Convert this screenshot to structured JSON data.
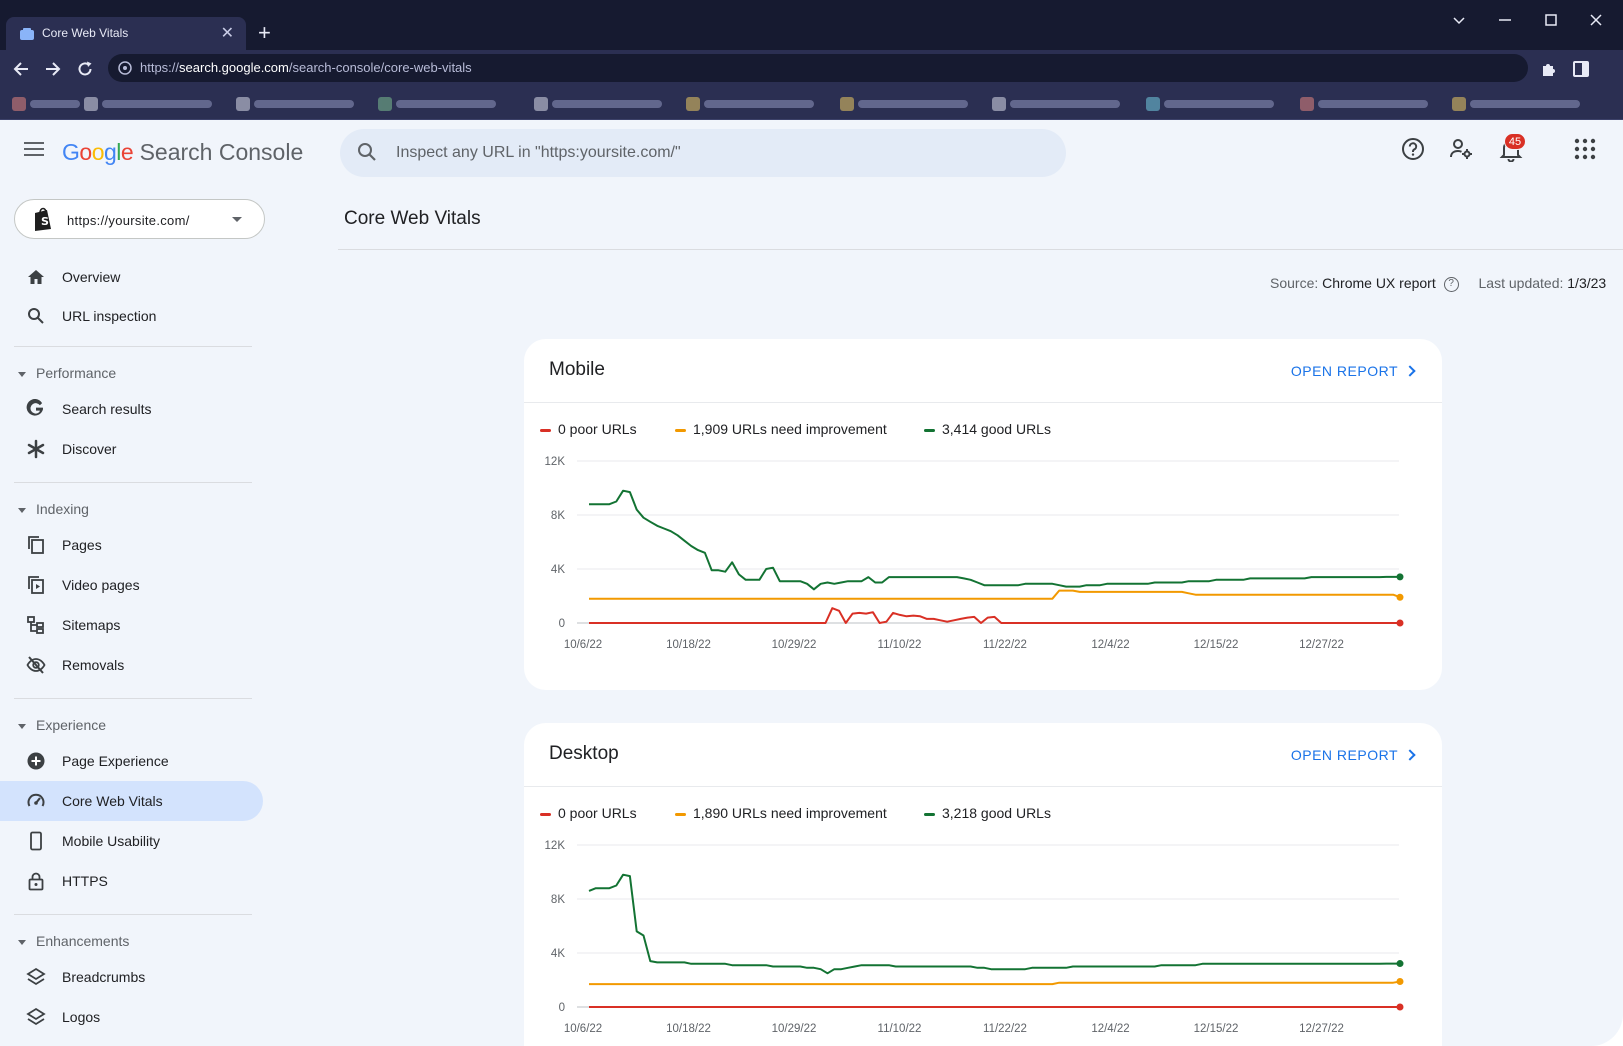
{
  "browser": {
    "tab_title": "Core Web Vitals",
    "tab_close": "✕",
    "new_tab": "+",
    "url_scheme": "https://",
    "url_host": "search.google.com",
    "url_path": "/search-console/core-web-vitals",
    "colors": {
      "frame": "#161a30",
      "toolbar": "#2b2f52"
    }
  },
  "header": {
    "logo_google": "Google",
    "logo_product": "Search Console",
    "search_placeholder": "Inspect any URL in \"https:yoursite.com/\"",
    "notification_count": "45"
  },
  "sidebar": {
    "property": "https://yoursite.com/",
    "top_items": [
      "Overview",
      "URL inspection"
    ],
    "sections": [
      {
        "title": "Performance",
        "items": [
          "Search results",
          "Discover"
        ]
      },
      {
        "title": "Indexing",
        "items": [
          "Pages",
          "Video pages",
          "Sitemaps",
          "Removals"
        ]
      },
      {
        "title": "Experience",
        "items": [
          "Page Experience",
          "Core Web Vitals",
          "Mobile Usability",
          "HTTPS"
        ]
      },
      {
        "title": "Enhancements",
        "items": [
          "Breadcrumbs",
          "Logos"
        ]
      }
    ],
    "active_item": "Core Web Vitals"
  },
  "main": {
    "title": "Core Web Vitals",
    "source_label": "Source:",
    "source_value": "Chrome UX report",
    "last_updated_label": "Last updated:",
    "last_updated_value": "1/3/23",
    "open_report": "OPEN REPORT"
  },
  "chart_data": [
    {
      "type": "line",
      "title": "Mobile",
      "x_ticks": [
        "10/6/22",
        "10/18/22",
        "10/29/22",
        "11/10/22",
        "11/22/22",
        "12/4/22",
        "12/15/22",
        "12/27/22"
      ],
      "y_ticks": [
        "12K",
        "8K",
        "4K",
        "0"
      ],
      "ylim": [
        0,
        12000
      ],
      "colors": {
        "poor": "#d93025",
        "needs_improvement": "#f29900",
        "good": "#137333"
      },
      "legend": [
        "0 poor URLs",
        "1,909 URLs need improvement",
        "3,414 good URLs"
      ],
      "series": [
        {
          "name": "0 poor URLs",
          "color": "#d93025",
          "values": [
            0,
            0,
            0,
            0,
            0,
            0,
            0,
            0,
            0,
            0,
            0,
            0,
            0,
            0,
            0,
            0,
            0,
            0,
            0,
            0,
            0,
            0,
            0,
            0,
            0,
            0,
            0,
            0,
            0,
            0,
            0,
            0,
            0,
            0,
            0,
            0,
            1100,
            900,
            0,
            700,
            750,
            700,
            800,
            0,
            100,
            750,
            600,
            500,
            550,
            500,
            300,
            300,
            200,
            100,
            200,
            300,
            400,
            450,
            0,
            400,
            450,
            0,
            0,
            0,
            0,
            0,
            0,
            0,
            0,
            0,
            0,
            0,
            0,
            0,
            0,
            0,
            0,
            0,
            0,
            0,
            0,
            0,
            0,
            0,
            0,
            0,
            0,
            0,
            0,
            0,
            0,
            0,
            0,
            0,
            0,
            0,
            0,
            0,
            0,
            0,
            0,
            0,
            0,
            0,
            0,
            0,
            0,
            0,
            0,
            0,
            0,
            0,
            0,
            0,
            0,
            0,
            0,
            0,
            0,
            0,
            0
          ]
        },
        {
          "name": "1,909 URLs need improvement",
          "color": "#f29900",
          "values": [
            1800,
            1800,
            1800,
            1800,
            1800,
            1800,
            1800,
            1800,
            1800,
            1800,
            1800,
            1800,
            1800,
            1800,
            1800,
            1800,
            1800,
            1800,
            1800,
            1800,
            1800,
            1800,
            1800,
            1800,
            1800,
            1800,
            1800,
            1800,
            1800,
            1800,
            1800,
            1800,
            1800,
            1800,
            1800,
            1800,
            1800,
            1800,
            1800,
            1800,
            1800,
            1800,
            1800,
            1800,
            1800,
            1800,
            1800,
            1800,
            1800,
            1800,
            1800,
            1800,
            1800,
            1800,
            1800,
            1800,
            1800,
            1800,
            1800,
            1800,
            1800,
            1800,
            1800,
            1800,
            1800,
            1800,
            1800,
            1800,
            1800,
            2400,
            2400,
            2400,
            2300,
            2300,
            2300,
            2300,
            2300,
            2300,
            2300,
            2300,
            2300,
            2300,
            2300,
            2300,
            2300,
            2300,
            2300,
            2300,
            2200,
            2100,
            2100,
            2100,
            2100,
            2100,
            2100,
            2100,
            2100,
            2100,
            2100,
            2100,
            2100,
            2100,
            2100,
            2100,
            2100,
            2100,
            2100,
            2100,
            2100,
            2100,
            2100,
            2100,
            2100,
            2100,
            2100,
            2100,
            2100,
            2100,
            2100,
            1909
          ]
        },
        {
          "name": "3,414 good URLs",
          "color": "#137333",
          "values": [
            8800,
            8800,
            8800,
            8800,
            9000,
            9800,
            9700,
            8400,
            7800,
            7500,
            7200,
            7000,
            6800,
            6500,
            6100,
            5700,
            5400,
            5200,
            3900,
            3900,
            3800,
            4500,
            3600,
            3200,
            3200,
            3200,
            4000,
            4100,
            3100,
            3100,
            3100,
            3100,
            2900,
            2500,
            2900,
            3000,
            2900,
            3000,
            3100,
            3100,
            3100,
            3400,
            3000,
            3000,
            3400,
            3400,
            3400,
            3400,
            3400,
            3400,
            3400,
            3400,
            3400,
            3400,
            3400,
            3300,
            3200,
            3000,
            2800,
            2800,
            2800,
            2800,
            2800,
            2800,
            2900,
            2900,
            2900,
            2900,
            2900,
            2800,
            2700,
            2700,
            2700,
            2800,
            2800,
            2800,
            2900,
            2900,
            2900,
            2900,
            2900,
            2900,
            2900,
            3000,
            3000,
            3000,
            3000,
            3000,
            3100,
            3100,
            3100,
            3100,
            3200,
            3200,
            3200,
            3200,
            3200,
            3300,
            3300,
            3300,
            3300,
            3300,
            3300,
            3300,
            3300,
            3300,
            3400,
            3400,
            3400,
            3400,
            3400,
            3400,
            3400,
            3400,
            3400,
            3400,
            3400,
            3414,
            3414,
            3414
          ]
        }
      ]
    },
    {
      "type": "line",
      "title": "Desktop",
      "x_ticks": [
        "10/6/22",
        "10/18/22",
        "10/29/22",
        "11/10/22",
        "11/22/22",
        "12/4/22",
        "12/15/22",
        "12/27/22"
      ],
      "y_ticks": [
        "12K",
        "8K",
        "4K",
        "0"
      ],
      "ylim": [
        0,
        12000
      ],
      "legend": [
        "0 poor URLs",
        "1,890 URLs need improvement",
        "3,218 good URLs"
      ],
      "series": [
        {
          "name": "0 poor URLs",
          "color": "#d93025",
          "values": [
            0,
            0,
            0,
            0,
            0,
            0,
            0,
            0,
            0,
            0,
            0,
            0,
            0,
            0,
            0,
            0,
            0,
            0,
            0,
            0,
            0,
            0,
            0,
            0,
            0,
            0,
            0,
            0,
            0,
            0,
            0,
            0,
            0,
            0,
            0,
            0,
            0,
            0,
            0,
            0,
            0,
            0,
            0,
            0,
            0,
            0,
            0,
            0,
            0,
            0,
            0,
            0,
            0,
            0,
            0,
            0,
            0,
            0,
            0,
            0,
            0,
            0,
            0,
            0,
            0,
            0,
            0,
            0,
            0,
            0,
            0,
            0,
            0,
            0,
            0,
            0,
            0,
            0,
            0,
            0,
            0,
            0,
            0,
            0,
            0,
            0,
            0,
            0,
            0,
            0,
            0,
            0,
            0,
            0,
            0,
            0,
            0,
            0,
            0,
            0,
            0,
            0,
            0,
            0,
            0,
            0,
            0,
            0,
            0,
            0,
            0,
            0,
            0,
            0,
            0,
            0,
            0,
            0,
            0,
            0
          ]
        },
        {
          "name": "1,890 URLs need improvement",
          "color": "#f29900",
          "values": [
            1700,
            1700,
            1700,
            1700,
            1700,
            1700,
            1700,
            1700,
            1700,
            1700,
            1700,
            1700,
            1700,
            1700,
            1700,
            1700,
            1700,
            1700,
            1700,
            1700,
            1700,
            1700,
            1700,
            1700,
            1700,
            1700,
            1700,
            1700,
            1700,
            1700,
            1700,
            1700,
            1700,
            1700,
            1700,
            1700,
            1700,
            1700,
            1700,
            1700,
            1700,
            1700,
            1700,
            1700,
            1700,
            1700,
            1700,
            1700,
            1700,
            1700,
            1700,
            1700,
            1700,
            1700,
            1700,
            1700,
            1700,
            1700,
            1700,
            1700,
            1700,
            1700,
            1700,
            1700,
            1700,
            1700,
            1700,
            1700,
            1700,
            1800,
            1800,
            1800,
            1800,
            1800,
            1800,
            1800,
            1800,
            1800,
            1800,
            1800,
            1800,
            1800,
            1800,
            1800,
            1800,
            1800,
            1800,
            1800,
            1800,
            1800,
            1800,
            1800,
            1800,
            1800,
            1800,
            1800,
            1800,
            1800,
            1800,
            1800,
            1800,
            1800,
            1800,
            1800,
            1800,
            1800,
            1800,
            1800,
            1800,
            1800,
            1800,
            1800,
            1800,
            1800,
            1800,
            1800,
            1800,
            1800,
            1800,
            1890
          ]
        },
        {
          "name": "3,218 good URLs",
          "color": "#137333",
          "values": [
            8600,
            8800,
            8800,
            8800,
            9000,
            9800,
            9700,
            5600,
            5300,
            3400,
            3300,
            3300,
            3300,
            3300,
            3300,
            3200,
            3200,
            3200,
            3200,
            3200,
            3200,
            3100,
            3100,
            3100,
            3100,
            3100,
            3100,
            3000,
            3000,
            3000,
            3000,
            3000,
            2900,
            2900,
            2800,
            2500,
            2800,
            2800,
            2900,
            3000,
            3100,
            3100,
            3100,
            3100,
            3100,
            3000,
            3000,
            3000,
            3000,
            3000,
            3000,
            3000,
            3000,
            3000,
            3000,
            3000,
            3000,
            2900,
            2900,
            2800,
            2800,
            2800,
            2800,
            2800,
            2800,
            2900,
            2900,
            2900,
            2900,
            2900,
            2900,
            3000,
            3000,
            3000,
            3000,
            3000,
            3000,
            3000,
            3000,
            3000,
            3000,
            3000,
            3000,
            3000,
            3100,
            3100,
            3100,
            3100,
            3100,
            3100,
            3200,
            3200,
            3200,
            3200,
            3200,
            3200,
            3200,
            3200,
            3200,
            3200,
            3200,
            3200,
            3200,
            3200,
            3200,
            3200,
            3200,
            3200,
            3200,
            3200,
            3200,
            3200,
            3200,
            3200,
            3200,
            3200,
            3200,
            3218,
            3218,
            3218
          ]
        }
      ]
    }
  ]
}
